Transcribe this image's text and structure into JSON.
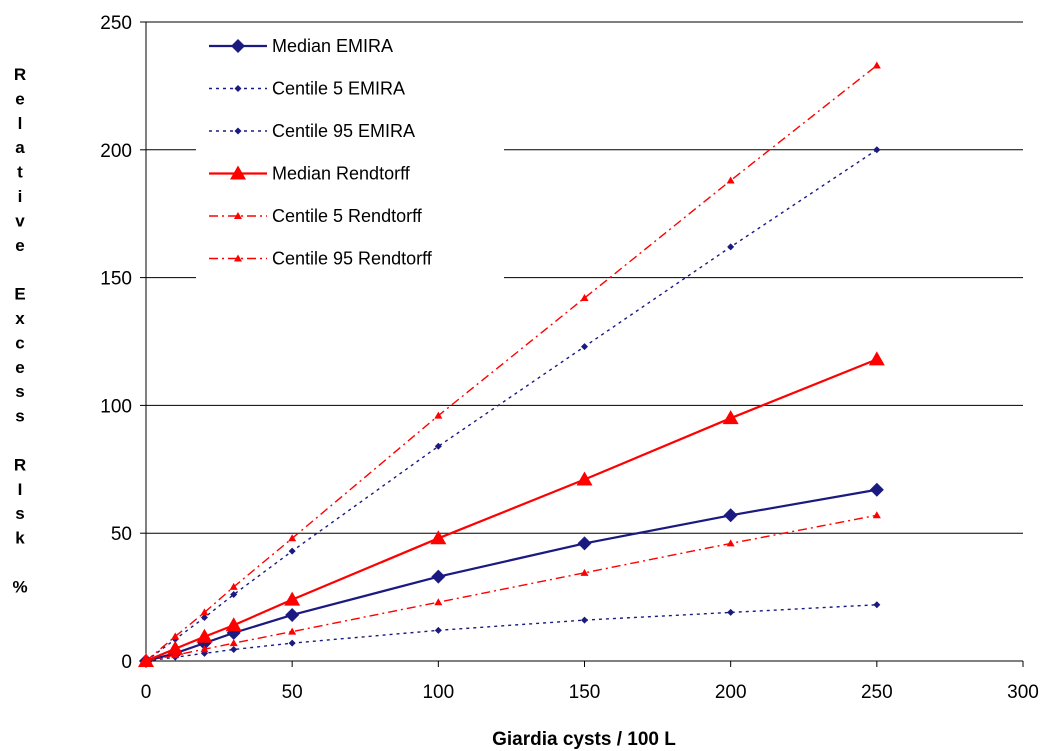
{
  "chart_data": {
    "type": "line",
    "title": "",
    "xlabel": "Giardia cysts / 100 L",
    "ylabel": "Relative Excess RIsk %",
    "ylabel_lines": [
      "R",
      "e",
      "l",
      "a",
      "t",
      "i",
      "v",
      "e",
      "",
      "E",
      "x",
      "c",
      "e",
      "s",
      "s",
      "",
      "R",
      "I",
      "s",
      "k",
      "",
      "%"
    ],
    "xlim": [
      0,
      300
    ],
    "ylim": [
      0,
      250
    ],
    "xticks": [
      0,
      50,
      100,
      150,
      200,
      250,
      300
    ],
    "yticks": [
      0,
      50,
      100,
      150,
      200,
      250
    ],
    "grid": "horizontal",
    "legend_position": "top-left",
    "x": [
      0,
      10,
      20,
      30,
      50,
      100,
      150,
      200,
      250
    ],
    "series": [
      {
        "name": "Median EMIRA",
        "color": "#1a1a80",
        "dash": "solid",
        "marker": "diamond-large",
        "values": [
          0,
          3,
          7,
          11,
          18,
          33,
          46,
          57,
          67
        ]
      },
      {
        "name": "Centile 5 EMIRA",
        "color": "#1a1a80",
        "dash": "dotted",
        "marker": "diamond-small",
        "values": [
          0,
          1.5,
          3,
          4.5,
          7,
          12,
          16,
          19,
          22
        ]
      },
      {
        "name": "Centile 95 EMIRA",
        "color": "#1a1a80",
        "dash": "dotted",
        "marker": "diamond-small",
        "values": [
          0,
          8.5,
          17,
          26,
          43,
          84,
          123,
          162,
          200
        ]
      },
      {
        "name": "Median Rendtorff",
        "color": "#ff0000",
        "dash": "solid",
        "marker": "triangle-large",
        "values": [
          0,
          4.8,
          9.5,
          14,
          24,
          48,
          71,
          95,
          118
        ]
      },
      {
        "name": "Centile 5 Rendtorff",
        "color": "#ff0000",
        "dash": "dashdot",
        "marker": "triangle-small",
        "values": [
          0,
          2.3,
          4.6,
          7,
          11.5,
          23,
          34.5,
          46,
          57
        ]
      },
      {
        "name": "Centile 95 Rendtorff",
        "color": "#ff0000",
        "dash": "dashdot",
        "marker": "triangle-small",
        "values": [
          0,
          9.6,
          19,
          29,
          48,
          96,
          142,
          188,
          233
        ]
      }
    ]
  }
}
